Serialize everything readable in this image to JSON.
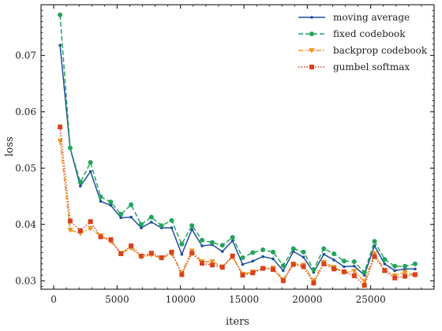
{
  "chart_data": {
    "type": "line",
    "xlabel": "iters",
    "ylabel": "loss",
    "xlim": [
      -1000,
      30000
    ],
    "ylim": [
      0.0285,
      0.079
    ],
    "xticks": [
      0,
      5000,
      10000,
      15000,
      20000,
      25000
    ],
    "yticks": [
      0.03,
      0.04,
      0.05,
      0.06,
      0.07
    ],
    "ytick_labels": [
      "0.03",
      "0.04",
      "0.05",
      "0.06",
      "0.07"
    ],
    "grid": false,
    "legend_position": "top-right",
    "x": [
      500,
      1300,
      2100,
      2900,
      3700,
      4500,
      5300,
      6100,
      6900,
      7700,
      8500,
      9300,
      10100,
      10900,
      11700,
      12500,
      13300,
      14100,
      14900,
      15700,
      16500,
      17300,
      18100,
      18900,
      19700,
      20500,
      21300,
      22100,
      22900,
      23700,
      24500,
      25300,
      26100,
      26900,
      27700,
      28500
    ],
    "series": [
      {
        "name": "moving average",
        "color": "#1f4e9c",
        "dash": "solid",
        "marker": "dot",
        "values": [
          0.0718,
          0.0535,
          0.0468,
          0.0494,
          0.0441,
          0.0434,
          0.0412,
          0.0413,
          0.0394,
          0.0404,
          0.0394,
          0.0394,
          0.0347,
          0.0391,
          0.0362,
          0.0364,
          0.0352,
          0.0371,
          0.0329,
          0.0335,
          0.0343,
          0.0339,
          0.0318,
          0.0352,
          0.0342,
          0.0315,
          0.0347,
          0.0337,
          0.0325,
          0.0326,
          0.031,
          0.0362,
          0.033,
          0.0318,
          0.0321,
          0.0321
        ]
      },
      {
        "name": "fixed codebook",
        "color": "#21a45a",
        "dash": "dashed",
        "marker": "circle",
        "values": [
          0.0772,
          0.0536,
          0.0475,
          0.051,
          0.0449,
          0.044,
          0.0418,
          0.0435,
          0.04,
          0.0413,
          0.0398,
          0.0407,
          0.0365,
          0.0398,
          0.0372,
          0.0368,
          0.0363,
          0.0377,
          0.0341,
          0.035,
          0.0355,
          0.0351,
          0.0327,
          0.0357,
          0.0351,
          0.032,
          0.0357,
          0.0348,
          0.0335,
          0.0334,
          0.0315,
          0.037,
          0.0338,
          0.0326,
          0.0326,
          0.033
        ]
      },
      {
        "name": "backprop codebook",
        "color": "#f0921e",
        "dash": "dashdot",
        "marker": "triangle-down",
        "values": [
          0.0548,
          0.039,
          0.0384,
          0.0393,
          0.038,
          0.037,
          0.0349,
          0.0358,
          0.0342,
          0.0346,
          0.034,
          0.0348,
          0.0314,
          0.0353,
          0.0334,
          0.0334,
          0.0325,
          0.0342,
          0.0312,
          0.0316,
          0.0322,
          0.0323,
          0.0302,
          0.033,
          0.0328,
          0.03,
          0.0333,
          0.0324,
          0.0315,
          0.0317,
          0.0299,
          0.0348,
          0.0319,
          0.0309,
          0.0315,
          0.031
        ]
      },
      {
        "name": "gumbel softmax",
        "color": "#d9421b",
        "dash": "dotted",
        "marker": "square",
        "values": [
          0.0573,
          0.0406,
          0.0389,
          0.0405,
          0.0378,
          0.0373,
          0.0348,
          0.0362,
          0.0344,
          0.0349,
          0.0341,
          0.0351,
          0.0311,
          0.0349,
          0.0331,
          0.0328,
          0.0324,
          0.0344,
          0.031,
          0.0314,
          0.0322,
          0.032,
          0.03,
          0.0329,
          0.0325,
          0.0296,
          0.033,
          0.0321,
          0.0316,
          0.0309,
          0.0292,
          0.0343,
          0.0318,
          0.0305,
          0.0308,
          0.0311
        ]
      }
    ]
  }
}
